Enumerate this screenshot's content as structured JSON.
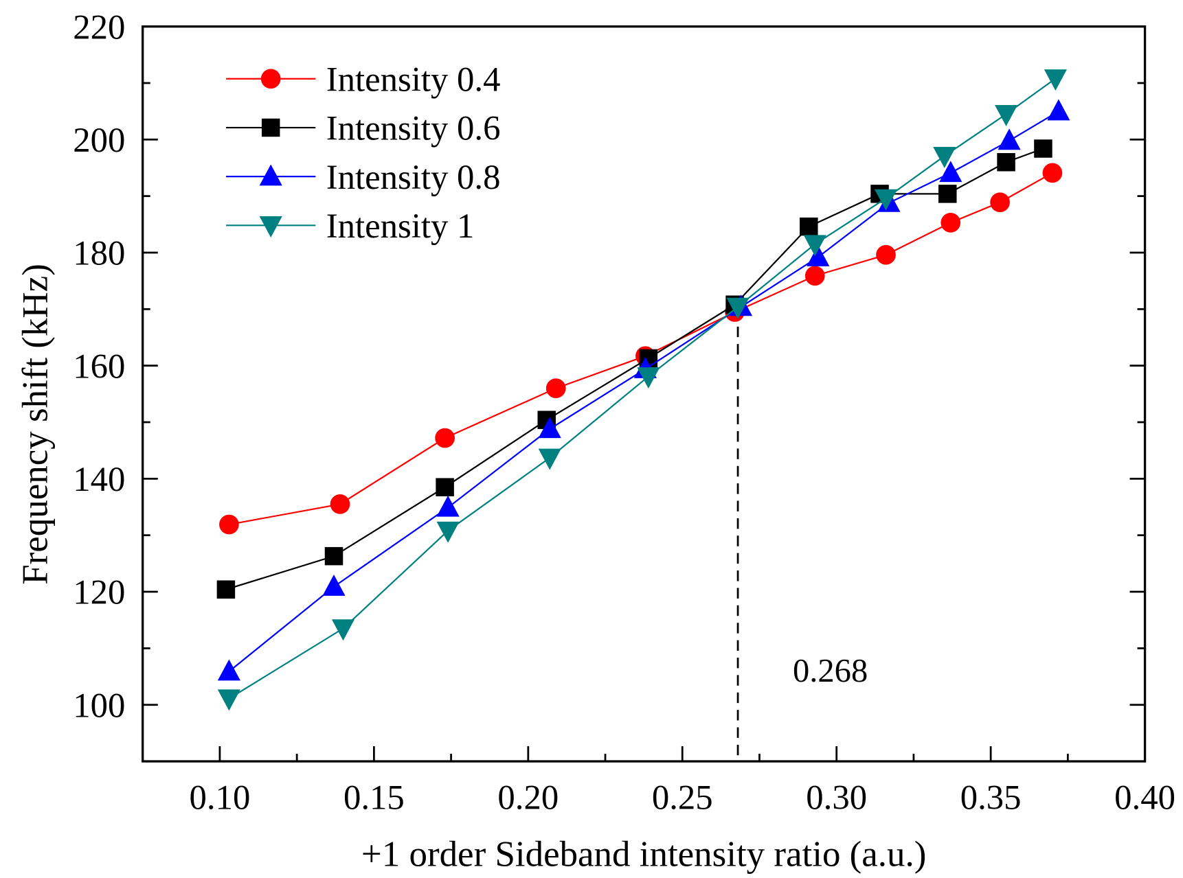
{
  "chart_data": {
    "type": "line",
    "title": "",
    "xlabel": "+1 order Sideband intensity ratio (a.u.)",
    "ylabel": "Frequency shift (kHz)",
    "xlim": [
      0.075,
      0.4
    ],
    "ylim": [
      90,
      220
    ],
    "xticks": [
      0.1,
      0.15,
      0.2,
      0.25,
      0.3,
      0.35,
      0.4
    ],
    "xtick_labels": [
      "0.10",
      "0.15",
      "0.20",
      "0.25",
      "0.30",
      "0.35",
      "0.40"
    ],
    "yticks": [
      100,
      120,
      140,
      160,
      180,
      200,
      220
    ],
    "ytick_labels": [
      "100",
      "120",
      "140",
      "160",
      "180",
      "200",
      "220"
    ],
    "grid": false,
    "legend_position": "top-left",
    "annotation": {
      "text": "0.268",
      "x": 0.268
    },
    "series": [
      {
        "name": "Intensity 0.4",
        "color": "#ff0000",
        "marker": "circle",
        "x": [
          0.103,
          0.139,
          0.173,
          0.209,
          0.238,
          0.267,
          0.293,
          0.316,
          0.337,
          0.353,
          0.37
        ],
        "y": [
          131.9,
          135.5,
          147.2,
          156.0,
          161.7,
          169.5,
          175.9,
          179.6,
          185.3,
          188.9,
          194.1
        ]
      },
      {
        "name": "Intensity 0.6",
        "color": "#000000",
        "marker": "square",
        "x": [
          0.102,
          0.137,
          0.173,
          0.206,
          0.239,
          0.267,
          0.291,
          0.314,
          0.336,
          0.355,
          0.367
        ],
        "y": [
          120.4,
          126.3,
          138.5,
          150.4,
          161.3,
          170.8,
          184.6,
          190.4,
          190.4,
          196.0,
          198.4
        ]
      },
      {
        "name": "Intensity 0.8",
        "color": "#0000ff",
        "marker": "triangle-up",
        "x": [
          0.103,
          0.137,
          0.174,
          0.207,
          0.238,
          0.269,
          0.294,
          0.317,
          0.337,
          0.356,
          0.372
        ],
        "y": [
          105.9,
          120.9,
          134.9,
          148.8,
          159.4,
          170.4,
          179.2,
          188.8,
          194.1,
          199.8,
          205.0
        ]
      },
      {
        "name": "Intensity 1",
        "color": "#008080",
        "marker": "triangle-down",
        "x": [
          0.103,
          0.14,
          0.174,
          0.207,
          0.239,
          0.268,
          0.293,
          0.316,
          0.335,
          0.355,
          0.371
        ],
        "y": [
          101.1,
          113.5,
          130.8,
          143.7,
          158.1,
          170.4,
          181.5,
          189.6,
          197.1,
          204.5,
          210.8
        ]
      }
    ]
  }
}
